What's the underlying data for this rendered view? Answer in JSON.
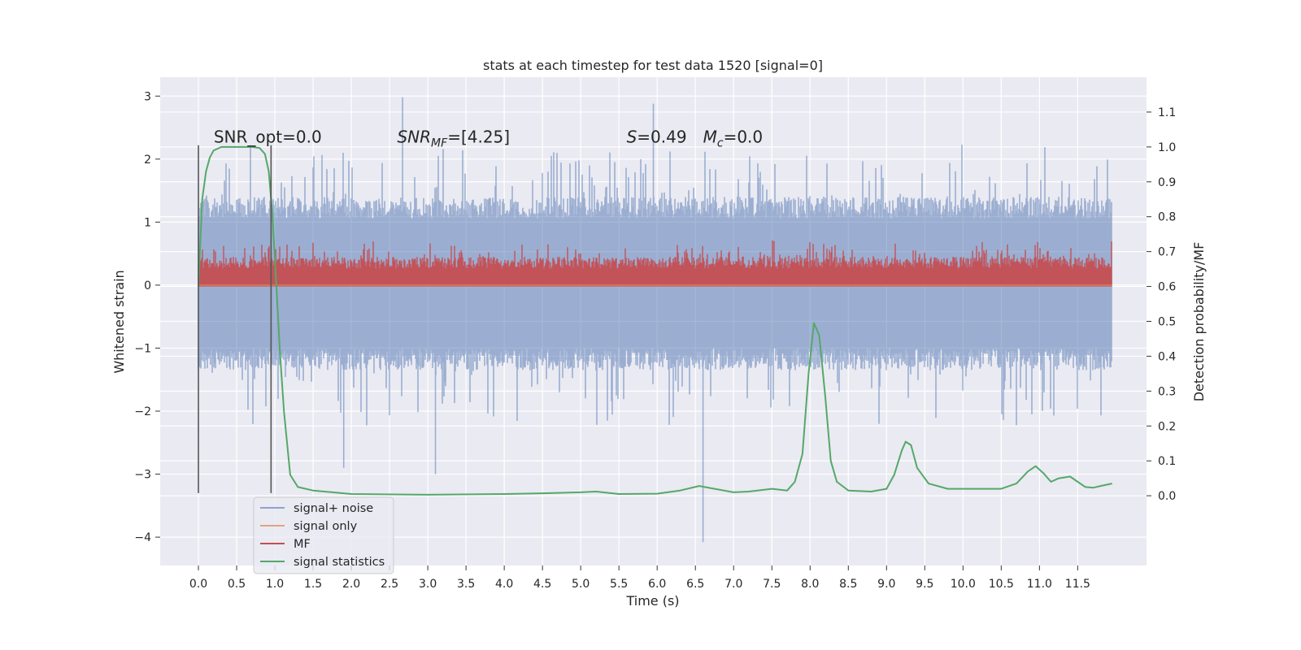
{
  "chart_data": {
    "type": "line",
    "title": "stats at each timestep for test data 1520 [signal=0]",
    "xlabel": "Time (s)",
    "ylabel": "Whitened strain",
    "ylabel_right": "Detection probability/MF",
    "xlim": [
      -0.5,
      12.4
    ],
    "ylim": [
      -4.45,
      3.3
    ],
    "ylim_right": [
      -0.2,
      1.2
    ],
    "x_ticks": [
      0.0,
      0.5,
      1.0,
      1.5,
      2.0,
      2.5,
      3.0,
      3.5,
      4.0,
      4.5,
      5.0,
      5.5,
      6.0,
      6.5,
      7.0,
      7.5,
      8.0,
      8.5,
      9.0,
      9.5,
      10.0,
      10.5,
      11.0,
      11.5
    ],
    "x_tick_labels": [
      "0.0",
      "0.5",
      "1.0",
      "1.5",
      "2.0",
      "2.5",
      "3.0",
      "3.5",
      "4.0",
      "4.5",
      "5.0",
      "5.5",
      "6.0",
      "6.5",
      "7.0",
      "7.5",
      "8.0",
      "8.5",
      "9.0",
      "9.5",
      "10.0",
      "10.5",
      "11.0",
      "11.5"
    ],
    "y_ticks": [
      -4,
      -3,
      -2,
      -1,
      0,
      1,
      2,
      3
    ],
    "y_tick_labels": [
      "−4",
      "−3",
      "−2",
      "−1",
      "0",
      "1",
      "2",
      "3"
    ],
    "y_ticks_right": [
      0.0,
      0.1,
      0.2,
      0.3,
      0.4,
      0.5,
      0.6,
      0.7,
      0.8,
      0.9,
      1.0,
      1.1
    ],
    "y_tick_labels_right": [
      "0.0",
      "0.1",
      "0.2",
      "0.3",
      "0.4",
      "0.5",
      "0.6",
      "0.7",
      "0.8",
      "0.9",
      "1.0",
      "1.1"
    ],
    "grid": true,
    "legend_placement": "lower-left",
    "colors": {
      "background": "#eaeaf2",
      "grid": "#ffffff",
      "signal_noise": "#4c72b0",
      "signal_only": "#dd8452",
      "mf": "#c44e52",
      "signal_statistics": "#55a868",
      "window_lines": "#555555"
    },
    "series": [
      {
        "name": "signal+ noise",
        "kind": "band",
        "x_range": [
          0.0,
          11.95
        ],
        "core_band": [
          -1.0,
          1.05
        ],
        "spike_max": 2.98,
        "spike_min": -4.08,
        "notable_spikes": [
          {
            "x": 2.67,
            "y": 2.98
          },
          {
            "x": 5.95,
            "y": 2.88
          },
          {
            "x": 6.6,
            "y": -4.08
          },
          {
            "x": 1.9,
            "y": -2.9
          },
          {
            "x": 3.1,
            "y": -3.0
          }
        ]
      },
      {
        "name": "signal only",
        "kind": "line",
        "x": [
          0.0,
          11.95
        ],
        "y": [
          0.0,
          0.0
        ]
      },
      {
        "name": "MF",
        "kind": "band",
        "x_range": [
          0.0,
          11.95
        ],
        "axis": "right",
        "core_band": [
          0.6,
          0.685
        ],
        "spike_max": 0.765
      },
      {
        "name": "signal statistics",
        "kind": "line",
        "axis": "right",
        "x": [
          0.0,
          0.05,
          0.1,
          0.15,
          0.2,
          0.3,
          0.5,
          0.7,
          0.8,
          0.87,
          0.92,
          0.97,
          1.02,
          1.07,
          1.12,
          1.2,
          1.3,
          1.5,
          2.0,
          3.0,
          4.0,
          4.5,
          5.0,
          5.2,
          5.5,
          6.0,
          6.3,
          6.55,
          6.75,
          7.0,
          7.2,
          7.5,
          7.7,
          7.8,
          7.9,
          7.98,
          8.05,
          8.12,
          8.2,
          8.27,
          8.35,
          8.5,
          8.8,
          9.0,
          9.1,
          9.2,
          9.25,
          9.32,
          9.4,
          9.55,
          9.8,
          10.0,
          10.5,
          10.7,
          10.85,
          10.95,
          11.05,
          11.15,
          11.25,
          11.4,
          11.5,
          11.6,
          11.7,
          11.8,
          11.95
        ],
        "y": [
          0.6,
          0.85,
          0.93,
          0.97,
          0.99,
          1.0,
          1.0,
          1.0,
          0.997,
          0.98,
          0.93,
          0.8,
          0.6,
          0.4,
          0.24,
          0.06,
          0.025,
          0.015,
          0.005,
          0.003,
          0.005,
          0.007,
          0.01,
          0.012,
          0.005,
          0.006,
          0.015,
          0.028,
          0.02,
          0.01,
          0.012,
          0.02,
          0.015,
          0.04,
          0.12,
          0.35,
          0.495,
          0.46,
          0.28,
          0.1,
          0.04,
          0.015,
          0.012,
          0.02,
          0.06,
          0.13,
          0.155,
          0.145,
          0.08,
          0.035,
          0.02,
          0.02,
          0.02,
          0.035,
          0.07,
          0.085,
          0.065,
          0.04,
          0.05,
          0.055,
          0.04,
          0.025,
          0.023,
          0.028,
          0.035
        ]
      }
    ],
    "window_lines_x": [
      0.0,
      0.95
    ],
    "window_lines_y": [
      -3.3,
      2.22
    ],
    "annotations": [
      {
        "text": "SNR_opt=0.0",
        "x": 0.2,
        "y": 2.26
      },
      {
        "text": "SNR_MF=[4.25]",
        "x": 2.6,
        "y": 2.26
      },
      {
        "text": "S=0.49",
        "x": 5.6,
        "y": 2.26
      },
      {
        "text": "M_c=0.0",
        "x": 6.6,
        "y": 2.26
      }
    ]
  }
}
